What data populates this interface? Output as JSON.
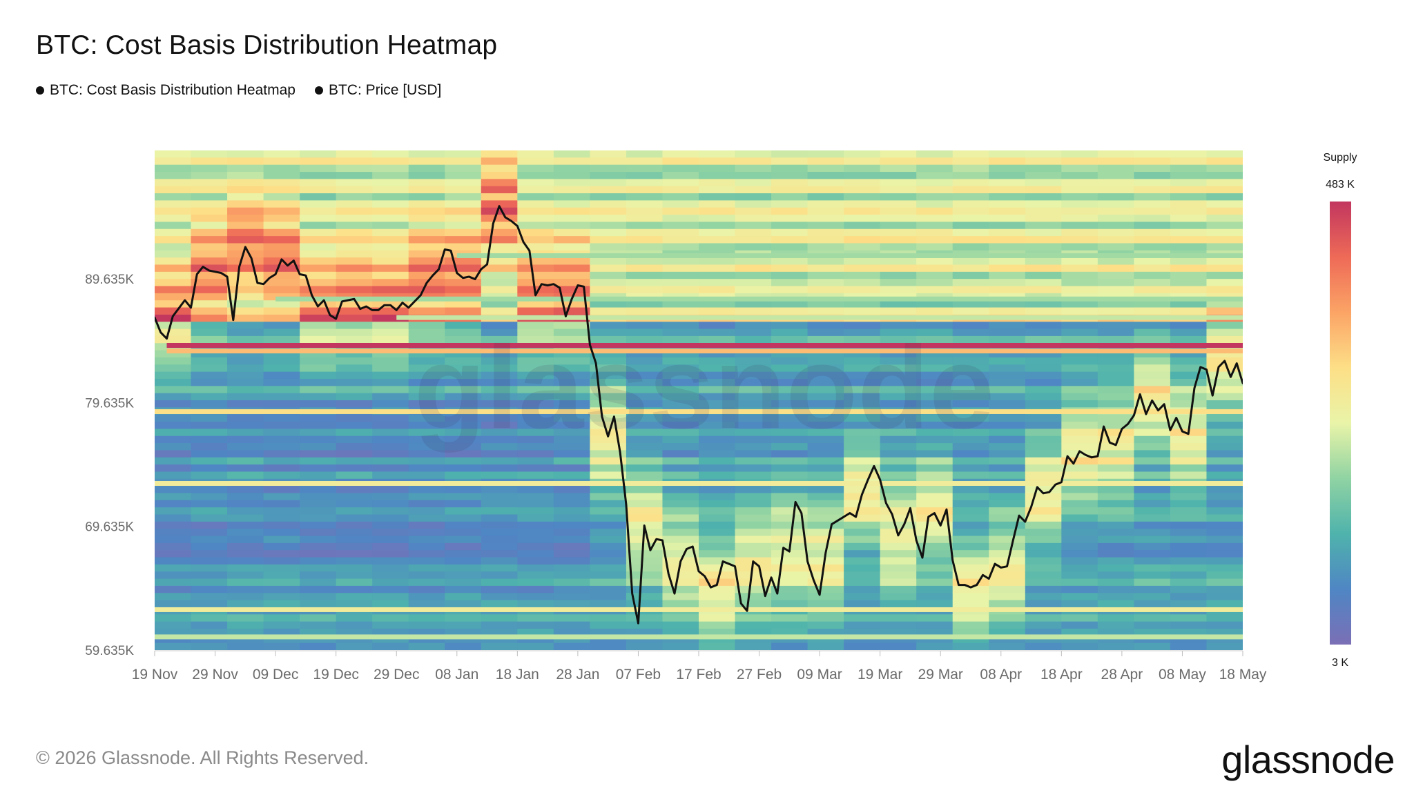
{
  "title": "BTC: Cost Basis Distribution Heatmap",
  "legend": [
    {
      "label": "BTC: Cost Basis Distribution Heatmap",
      "color": "#111111"
    },
    {
      "label": "BTC: Price [USD]",
      "color": "#111111"
    }
  ],
  "watermark": "glassnode",
  "footer": "© 2026 Glassnode. All Rights Reserved.",
  "brand": "glassnode",
  "chart_data": {
    "type": "heatmap",
    "title": "BTC: Cost Basis Distribution Heatmap",
    "xlabel": "",
    "ylabel": "",
    "x_ticks": [
      "19 Nov",
      "29 Nov",
      "09 Dec",
      "19 Dec",
      "29 Dec",
      "08 Jan",
      "18 Jan",
      "28 Jan",
      "07 Feb",
      "17 Feb",
      "27 Feb",
      "09 Mar",
      "19 Mar",
      "29 Mar",
      "08 Apr",
      "18 Apr",
      "28 Apr",
      "08 May",
      "18 May"
    ],
    "x_range_days": [
      0,
      180
    ],
    "y_ticks": [
      59635,
      69635,
      79635,
      89635
    ],
    "y_tick_labels": [
      "59.635K",
      "69.635K",
      "79.635K",
      "89.635K"
    ],
    "ylim": [
      59635,
      100000
    ],
    "colorbar": {
      "title": "Supply",
      "max_label": "483 K",
      "min_label": "3 K",
      "max": 483000,
      "min": 3000,
      "colors": [
        "#7b6fb6",
        "#4f86c4",
        "#4fb3ac",
        "#90d3a3",
        "#e9f4a8",
        "#fddf87",
        "#fba466",
        "#ee6a57",
        "#c2365f"
      ]
    },
    "bands": [
      {
        "price": 84250,
        "intensity": 1.0,
        "start_day": 2
      },
      {
        "price": 83800,
        "intensity": 0.7,
        "start_day": 2
      },
      {
        "price": 78900,
        "intensity": 0.62,
        "start_day": 0
      },
      {
        "price": 73100,
        "intensity": 0.55,
        "start_day": 0
      },
      {
        "price": 62900,
        "intensity": 0.55,
        "start_day": 0
      },
      {
        "price": 60700,
        "intensity": 0.45,
        "start_day": 0
      },
      {
        "price": 86500,
        "intensity": 0.45,
        "start_day": 40
      },
      {
        "price": 88000,
        "intensity": 0.4,
        "start_day": 20
      },
      {
        "price": 91500,
        "intensity": 0.4,
        "start_day": 50
      }
    ],
    "series": [
      {
        "name": "BTC: Price [USD]",
        "color": "#111111",
        "x_days": [
          0,
          1,
          2,
          3,
          5,
          6,
          7,
          8,
          9,
          11,
          12,
          13,
          14,
          15,
          16,
          17,
          18,
          19,
          20,
          21,
          22,
          23,
          24,
          25,
          26,
          27,
          28,
          29,
          30,
          31,
          32,
          33,
          34,
          35,
          36,
          37,
          38,
          39,
          40,
          41,
          42,
          43,
          44,
          45,
          46,
          47,
          48,
          49,
          50,
          51,
          52,
          53,
          54,
          55,
          56,
          57,
          58,
          59,
          60,
          61,
          62,
          63,
          64,
          65,
          66,
          67,
          68,
          69,
          70,
          71,
          72,
          73,
          74,
          75,
          76,
          77,
          78,
          79,
          80,
          81,
          82,
          83,
          84,
          85,
          86,
          87,
          88,
          89,
          90,
          91,
          92,
          93,
          94,
          95,
          96,
          97,
          98,
          99,
          100,
          101,
          102,
          103,
          104,
          105,
          106,
          107,
          108,
          109,
          110,
          111,
          112,
          113,
          114,
          115,
          116,
          117,
          118,
          119,
          120,
          121,
          122,
          123,
          124,
          125,
          126,
          127,
          128,
          129,
          130,
          131,
          132,
          133,
          134,
          135,
          136,
          137,
          138,
          139,
          140,
          141,
          142,
          143,
          144,
          145,
          146,
          147,
          148,
          149,
          150,
          151,
          152,
          153,
          154,
          155,
          156,
          157,
          158,
          159,
          160,
          161,
          162,
          163,
          164,
          165,
          166,
          167,
          168,
          169,
          170,
          171,
          172,
          173,
          174,
          175,
          176,
          177,
          178,
          179,
          180
        ],
        "values": [
          86500,
          85300,
          84800,
          86600,
          87900,
          87300,
          90000,
          90600,
          90300,
          90100,
          89800,
          86300,
          90600,
          92200,
          91300,
          89300,
          89200,
          89700,
          90000,
          91200,
          90700,
          91100,
          90000,
          89900,
          88300,
          87400,
          87900,
          86700,
          86400,
          87800,
          87900,
          88000,
          87200,
          87400,
          87100,
          87100,
          87500,
          87500,
          87100,
          87700,
          87300,
          87800,
          88300,
          89300,
          89900,
          90400,
          92000,
          91900,
          90100,
          89700,
          89800,
          89600,
          90400,
          90800,
          94100,
          95500,
          94600,
          94300,
          93900,
          92600,
          91900,
          88300,
          89200,
          89100,
          89200,
          88900,
          86600,
          88000,
          89100,
          89000,
          84300,
          82800,
          78500,
          76900,
          78500,
          75600,
          71400,
          64200,
          61800,
          69700,
          67700,
          68600,
          68500,
          65800,
          64200,
          66800,
          67800,
          68000,
          66000,
          65600,
          64700,
          64900,
          66800,
          66600,
          66400,
          63400,
          62800,
          66800,
          66400,
          64000,
          65500,
          64200,
          67900,
          67600,
          71600,
          70700,
          66800,
          65300,
          64100,
          67500,
          69800,
          70100,
          70400,
          70700,
          70400,
          72200,
          73400,
          74500,
          73400,
          71500,
          70600,
          68900,
          69800,
          71100,
          68500,
          67100,
          70400,
          70700,
          69700,
          71000,
          66900,
          64900,
          64900,
          64700,
          64900,
          65700,
          65400,
          66600,
          66300,
          66400,
          68500,
          70500,
          70000,
          71200,
          72800,
          72300,
          72400,
          73000,
          73200,
          75300,
          74700,
          75700,
          75400,
          75200,
          75300,
          77700,
          76400,
          76200,
          77500,
          77900,
          78600,
          80300,
          78700,
          79800,
          79000,
          79500,
          77400,
          78400,
          77300,
          77100,
          80800,
          82500,
          82300,
          80200,
          82500,
          83000,
          81700,
          82800,
          81200,
          80000,
          80200,
          79300,
          78500
        ]
      }
    ]
  }
}
